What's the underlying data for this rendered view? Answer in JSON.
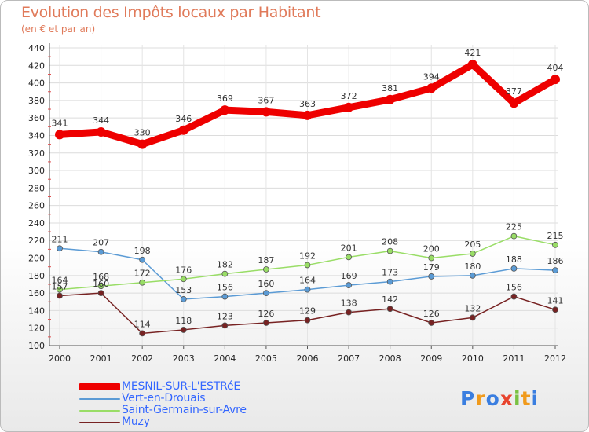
{
  "header": {
    "title": "Evolution des Impôts locaux par Habitant",
    "subtitle": "(en € et par an)"
  },
  "brand": {
    "logo_text": "Proxiti"
  },
  "chart_data": {
    "type": "line",
    "title": "Evolution des Impôts locaux par Habitant",
    "subtitle": "(en € et par an)",
    "xlabel": "",
    "ylabel": "",
    "x": [
      "2000",
      "2001",
      "2002",
      "2003",
      "2004",
      "2005",
      "2006",
      "2007",
      "2008",
      "2009",
      "2010",
      "2011",
      "2012"
    ],
    "ylim": [
      100,
      440
    ],
    "yticks": [
      100,
      120,
      140,
      160,
      180,
      200,
      220,
      240,
      260,
      280,
      300,
      320,
      340,
      360,
      380,
      400,
      420,
      440
    ],
    "grid": true,
    "legend_position": "bottom-left",
    "series": [
      {
        "name": "MESNIL-SUR-L'ESTRéE",
        "color": "#ee0000",
        "emphasis": true,
        "values": [
          341,
          344,
          330,
          346,
          369,
          367,
          363,
          372,
          381,
          394,
          421,
          377,
          404
        ]
      },
      {
        "name": "Vert-en-Drouais",
        "color": "#5b9bd5",
        "values": [
          211,
          207,
          198,
          153,
          156,
          160,
          164,
          169,
          173,
          179,
          180,
          188,
          186
        ]
      },
      {
        "name": "Saint-Germain-sur-Avre",
        "color": "#99dd66",
        "values": [
          164,
          168,
          172,
          176,
          182,
          187,
          192,
          201,
          208,
          200,
          205,
          225,
          215
        ]
      },
      {
        "name": "Muzy",
        "color": "#772222",
        "values": [
          157,
          160,
          114,
          118,
          123,
          126,
          129,
          138,
          142,
          126,
          132,
          156,
          141
        ]
      }
    ]
  }
}
